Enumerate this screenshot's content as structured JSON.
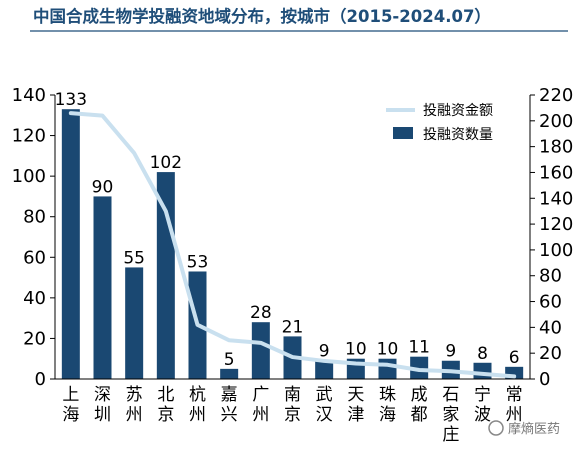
{
  "chart_data": {
    "type": "bar",
    "title": "中国合成生物学投融资地域分布，按城市（2015-2024.07）",
    "categories": [
      "上海",
      "深圳",
      "苏州",
      "北京",
      "杭州",
      "嘉兴",
      "广州",
      "南京",
      "武汉",
      "天津",
      "珠海",
      "成都",
      "石家庄",
      "宁波",
      "常州"
    ],
    "series": [
      {
        "name": "投融资数量",
        "type": "bar",
        "axis": "left",
        "values": [
          133,
          90,
          55,
          102,
          53,
          5,
          28,
          21,
          9,
          10,
          10,
          11,
          9,
          8,
          6
        ]
      },
      {
        "name": "投融资金额",
        "type": "line",
        "axis": "right",
        "values": [
          206,
          204,
          175,
          130,
          42,
          30,
          28,
          17,
          14,
          12,
          11,
          7,
          6,
          4,
          2
        ]
      }
    ],
    "y_left": {
      "lim": [
        0,
        140
      ],
      "ticks": [
        0,
        20,
        40,
        60,
        80,
        100,
        120,
        140
      ]
    },
    "y_right": {
      "lim": [
        0,
        220
      ],
      "ticks": [
        0,
        20,
        40,
        60,
        80,
        100,
        120,
        140,
        160,
        180,
        200,
        220
      ]
    },
    "legend_position": "top-right",
    "grid": false,
    "colors": {
      "bar": "#1a4872",
      "line": "#c9e0ef",
      "title": "#1f4e79"
    }
  },
  "watermark": "摩熵医药"
}
